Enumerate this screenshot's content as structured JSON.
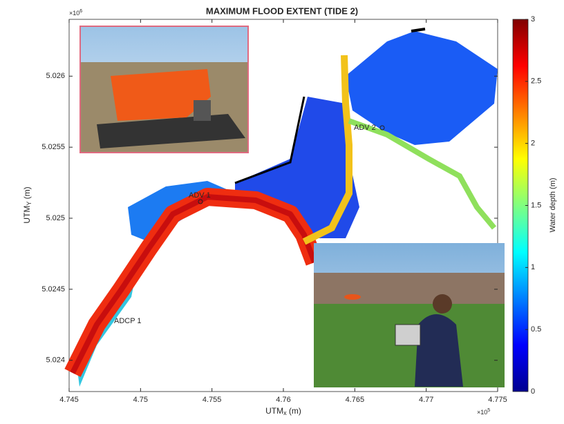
{
  "chart_data": {
    "type": "map",
    "title": "MAXIMUM FLOOD EXTENT (TIDE 2)",
    "x_label": {
      "main": "UTM",
      "sub": "x",
      "unit": " (m)"
    },
    "y_label": {
      "main": "UTM",
      "sub": "Y",
      "unit": " (m)"
    },
    "x_multiplier": {
      "base": "×10",
      "exponent": 5
    },
    "y_multiplier": {
      "base": "×10",
      "exponent": 6
    },
    "xlim": [
      4.745,
      4.775
    ],
    "xticks": [
      4.745,
      4.75,
      4.755,
      4.76,
      4.765,
      4.77,
      4.775
    ],
    "ylim": [
      5.02378,
      5.0264
    ],
    "yticks": [
      5.024,
      5.0245,
      5.025,
      5.0255,
      5.026
    ],
    "colorbar": {
      "label": "Water depth (m)",
      "lim": [
        0,
        3
      ],
      "ticks": [
        0,
        0.5,
        1,
        1.5,
        2,
        2.5,
        3
      ],
      "colormap": "jet"
    },
    "annotations": [
      "ADV 2",
      "ADV 1",
      "ADCP 1"
    ]
  }
}
